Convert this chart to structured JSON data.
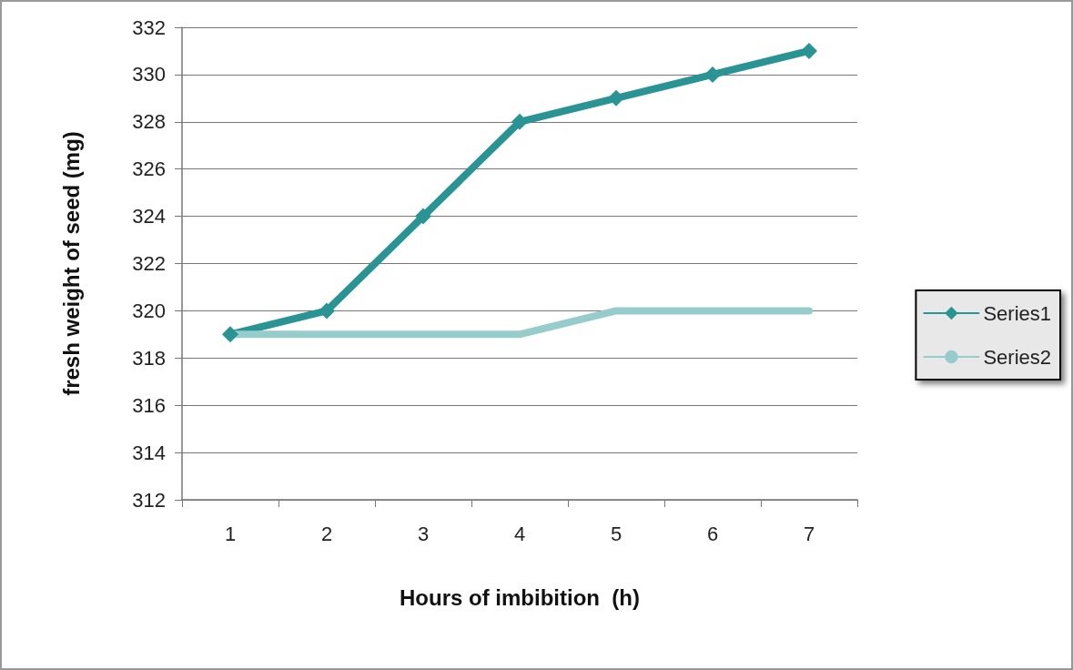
{
  "chart_data": {
    "type": "line",
    "xlabel": "Hours of imbibition  (h)",
    "ylabel": "fresh weight of seed (mg)",
    "categories": [
      "1",
      "2",
      "3",
      "4",
      "5",
      "6",
      "7"
    ],
    "series": [
      {
        "name": "Series1",
        "color": "#2a9494",
        "marker": "diamond",
        "values": [
          319,
          320,
          324,
          328,
          329,
          330,
          331
        ]
      },
      {
        "name": "Series2",
        "color": "#96cccc",
        "marker": "none",
        "values": [
          319,
          319,
          319,
          319,
          320,
          320,
          320
        ]
      }
    ],
    "ylim": [
      312,
      332
    ],
    "yticks": [
      312,
      314,
      316,
      318,
      320,
      322,
      324,
      326,
      328,
      330,
      332
    ],
    "grid": "y",
    "legend": "right"
  }
}
